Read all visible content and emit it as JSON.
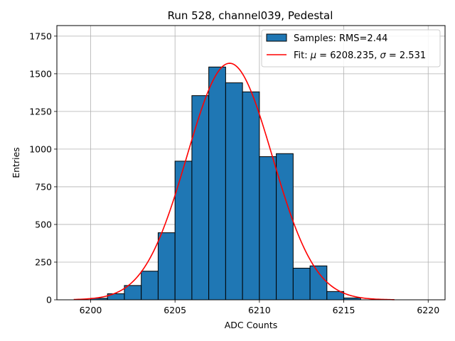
{
  "chart_data": {
    "type": "bar",
    "title": "Run 528, channel039, Pedestal",
    "xlabel": "ADC Counts",
    "ylabel": "Entries",
    "xlim": [
      6198,
      6221
    ],
    "ylim": [
      0,
      1820
    ],
    "xticks": [
      6200,
      6205,
      6210,
      6215,
      6220
    ],
    "yticks": [
      0,
      250,
      500,
      750,
      1000,
      1250,
      1500,
      1750
    ],
    "grid": true,
    "legend_position": "top-right",
    "colors": {
      "bar": "#1f77b4",
      "bar_edge": "#000000",
      "fit": "#ff0000"
    },
    "histogram": {
      "name": "Samples: RMS=2.44",
      "bin_edges": [
        6200,
        6201,
        6202,
        6203,
        6204,
        6205,
        6206,
        6207,
        6208,
        6209,
        6210,
        6211,
        6212,
        6213,
        6214,
        6215,
        6216
      ],
      "counts": [
        10,
        40,
        95,
        190,
        445,
        920,
        1355,
        1545,
        1440,
        1380,
        950,
        970,
        210,
        225,
        55,
        12
      ]
    },
    "fit": {
      "name_prefix": "Fit: ",
      "name_mu": "μ",
      "name_mid": " = 6208.235, ",
      "name_sigma": "σ",
      "name_suffix": " = 2.531",
      "mu": 6208.235,
      "sigma": 2.531,
      "amplitude": 1570,
      "range": [
        6199,
        6218
      ]
    }
  }
}
